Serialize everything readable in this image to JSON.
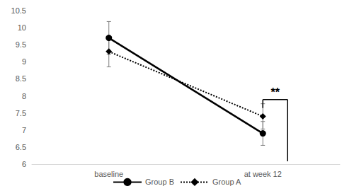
{
  "chart_data": {
    "type": "line",
    "categories": [
      "baseline",
      "at week 12"
    ],
    "series": [
      {
        "name": "Group B",
        "color": "#000000",
        "marker": "circle",
        "line_style": "solid",
        "values": [
          9.7,
          6.9
        ],
        "errors": [
          0.48,
          0.35
        ]
      },
      {
        "name": "Group A",
        "color": "#000000",
        "marker": "diamond",
        "line_style": "dotted",
        "values": [
          9.3,
          7.4
        ],
        "errors": [
          0.45,
          0.37
        ]
      }
    ],
    "ylim": [
      6,
      10.5
    ],
    "yticks": [
      6,
      6.5,
      7,
      7.5,
      8,
      8.5,
      9,
      9.5,
      10,
      10.5
    ],
    "grid": false,
    "legend": "bottom",
    "annotations": [
      {
        "text": "**",
        "category": "at week 12",
        "between": [
          "Group B",
          "Group A"
        ]
      }
    ]
  }
}
